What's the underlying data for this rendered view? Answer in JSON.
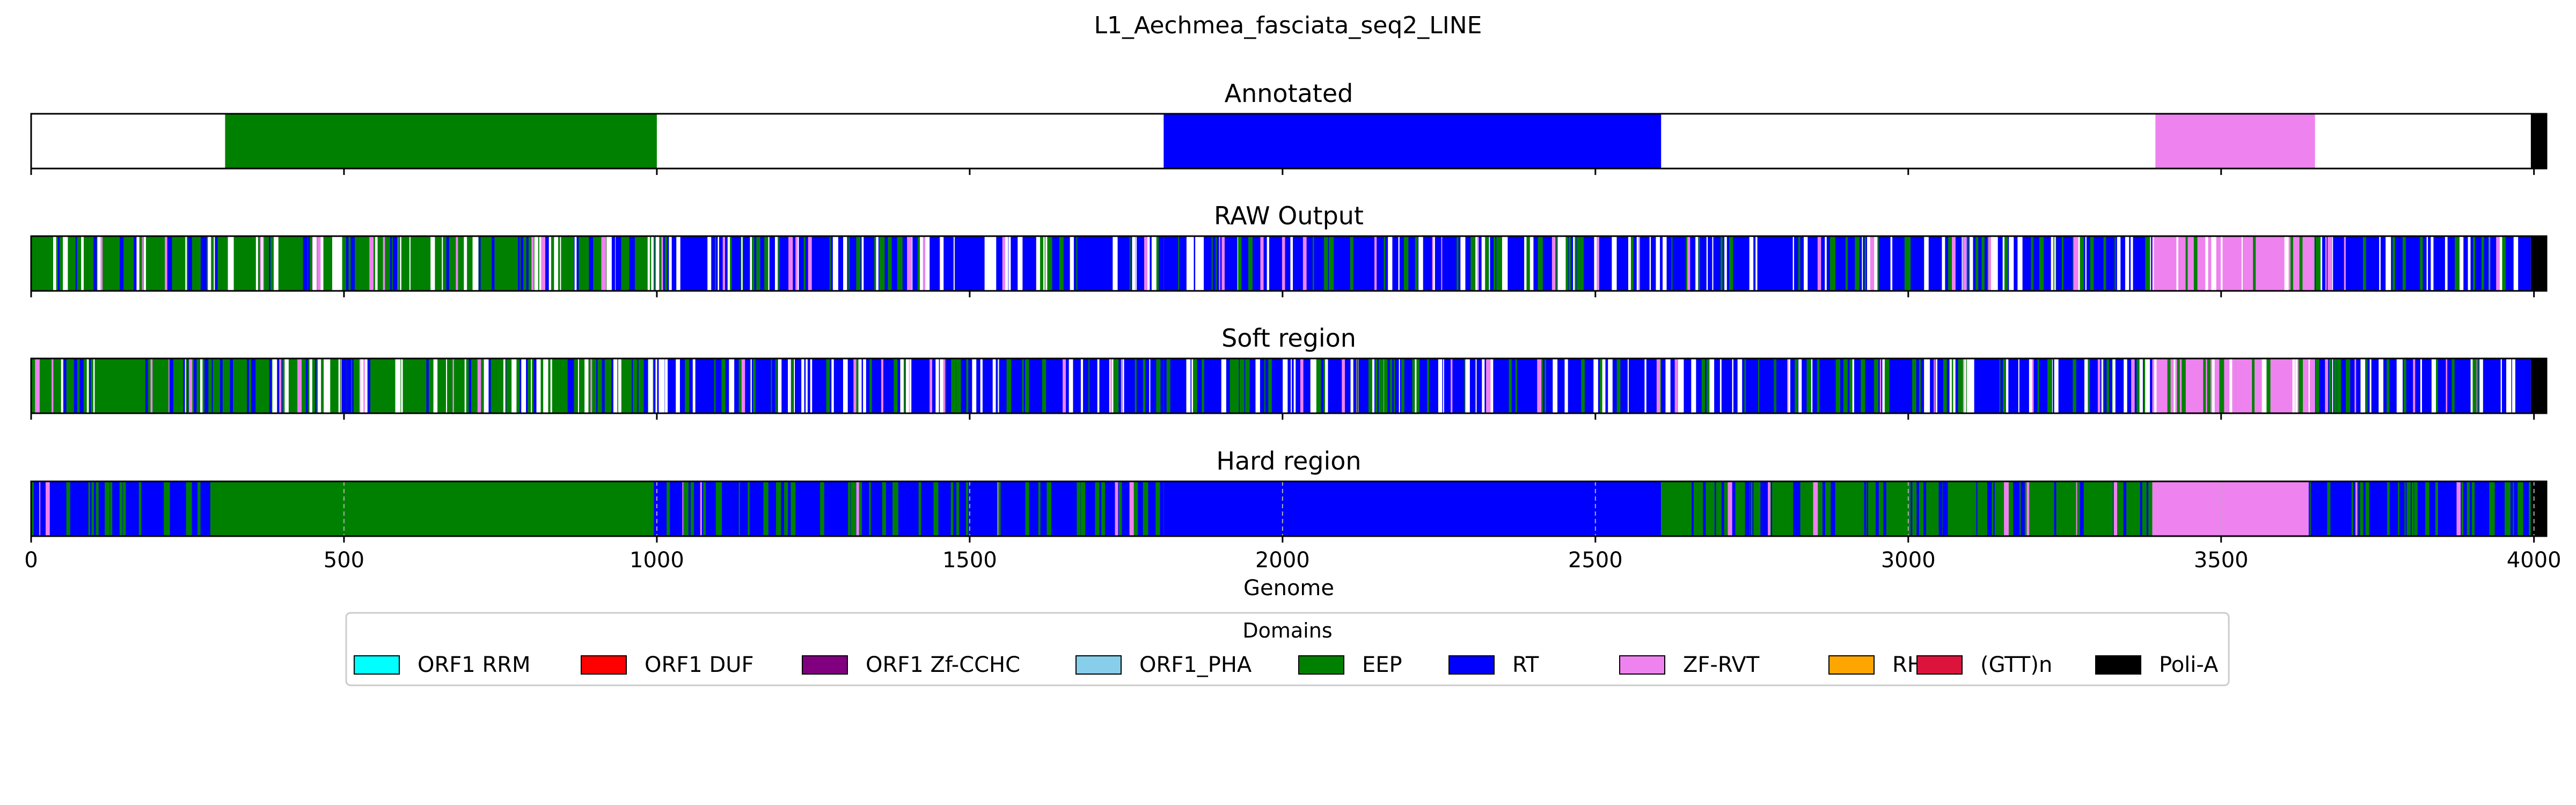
{
  "figure": {
    "suptitle": "L1_Aechmea_fasciata_seq2_LINE"
  },
  "chart_data": {
    "type": "bar",
    "orientation": "horizontal-tracks",
    "title": "L1_Aechmea_fasciata_seq2_LINE",
    "xlabel": "Genome",
    "xlim": [
      0,
      4020
    ],
    "xticks": [
      0,
      500,
      1000,
      1500,
      2000,
      2500,
      3000,
      3500,
      4000
    ],
    "legend": {
      "title": "Domains",
      "placement": "bottom-center",
      "entries": [
        {
          "label": "ORF1 RRM",
          "color": "#00ffff"
        },
        {
          "label": "ORF1 DUF",
          "color": "#ff0000"
        },
        {
          "label": "ORF1 Zf-CCHC",
          "color": "#800080"
        },
        {
          "label": "ORF1_PHA",
          "color": "#87ceeb"
        },
        {
          "label": "EEP",
          "color": "#008000"
        },
        {
          "label": "RT",
          "color": "#0000ff"
        },
        {
          "label": "ZF-RVT",
          "color": "#ee82ee"
        },
        {
          "label": "RH",
          "color": "#ffa500"
        },
        {
          "label": "(GTT)n",
          "color": "#dc143c"
        },
        {
          "label": "Poli-A",
          "color": "#000000"
        }
      ]
    },
    "panels": [
      {
        "title": "Annotated",
        "grid": false,
        "segments": [
          {
            "start": 310,
            "end": 1000,
            "domain": "EEP"
          },
          {
            "start": 1810,
            "end": 2605,
            "domain": "RT"
          },
          {
            "start": 3395,
            "end": 3650,
            "domain": "ZF-RVT"
          },
          {
            "start": 3995,
            "end": 4020,
            "domain": "Poli-A"
          }
        ]
      },
      {
        "title": "RAW Output",
        "grid": false,
        "segments": [
          {
            "start": 0,
            "end": 995,
            "domain": "EEP"
          },
          {
            "start": 995,
            "end": 1810,
            "domain": "RT"
          },
          {
            "start": 1810,
            "end": 2605,
            "domain": "RT"
          },
          {
            "start": 2605,
            "end": 3390,
            "domain": "RT"
          },
          {
            "start": 3390,
            "end": 3650,
            "domain": "ZF-RVT"
          },
          {
            "start": 3650,
            "end": 3995,
            "domain": "RT"
          },
          {
            "start": 3995,
            "end": 4020,
            "domain": "Poli-A"
          }
        ]
      },
      {
        "title": "Soft region",
        "grid": false,
        "segments": [
          {
            "start": 0,
            "end": 995,
            "domain": "EEP"
          },
          {
            "start": 995,
            "end": 1810,
            "domain": "RT"
          },
          {
            "start": 1810,
            "end": 2605,
            "domain": "RT"
          },
          {
            "start": 2605,
            "end": 3390,
            "domain": "RT"
          },
          {
            "start": 3390,
            "end": 3650,
            "domain": "ZF-RVT"
          },
          {
            "start": 3650,
            "end": 3995,
            "domain": "RT"
          },
          {
            "start": 3995,
            "end": 4020,
            "domain": "Poli-A"
          }
        ]
      },
      {
        "title": "Hard region",
        "grid": true,
        "segments": [
          {
            "start": 0,
            "end": 295,
            "domain": "RT"
          },
          {
            "start": 295,
            "end": 995,
            "domain": "EEP"
          },
          {
            "start": 995,
            "end": 1810,
            "domain": "RT"
          },
          {
            "start": 1810,
            "end": 2605,
            "domain": "RT"
          },
          {
            "start": 2605,
            "end": 3390,
            "domain": "EEP"
          },
          {
            "start": 3390,
            "end": 3640,
            "domain": "ZF-RVT"
          },
          {
            "start": 3640,
            "end": 3995,
            "domain": "RT"
          },
          {
            "start": 3995,
            "end": 4020,
            "domain": "Poli-A"
          }
        ]
      }
    ]
  }
}
